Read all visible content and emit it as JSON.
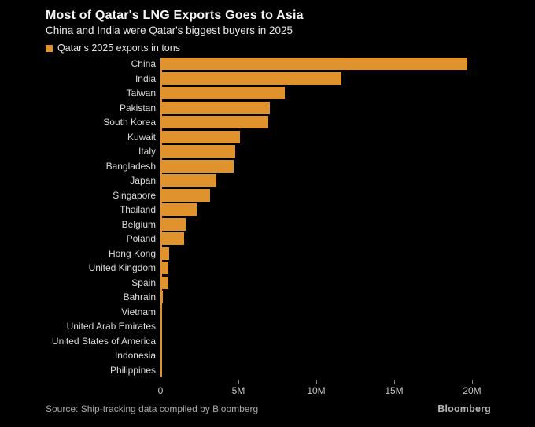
{
  "header": {
    "title": "Most of Qatar's LNG Exports Goes to Asia",
    "subtitle": "China and India were Qatar's biggest buyers in 2025"
  },
  "legend": {
    "swatch_color": "#E0922D",
    "label": "Qatar's 2025 exports in tons"
  },
  "chart_data": {
    "type": "bar",
    "orientation": "horizontal",
    "title": "Most of Qatar's LNG Exports Goes to Asia",
    "subtitle": "China and India were Qatar's biggest buyers in 2025",
    "legend": "Qatar's 2025 exports in tons",
    "legend_position": "top-left",
    "grid": false,
    "unit": "million tons",
    "xlabel": "",
    "ylabel": "",
    "xlim": [
      0,
      20
    ],
    "bar_color": "#E0922D",
    "categories": [
      "China",
      "India",
      "Taiwan",
      "Pakistan",
      "South Korea",
      "Kuwait",
      "Italy",
      "Bangladesh",
      "Japan",
      "Singapore",
      "Thailand",
      "Belgium",
      "Poland",
      "Hong Kong",
      "United Kingdom",
      "Spain",
      "Bahrain",
      "Vietnam",
      "United Arab Emirates",
      "United States of America",
      "Indonesia",
      "Philippines"
    ],
    "values": [
      19.7,
      11.6,
      8.0,
      7.0,
      6.9,
      5.1,
      4.8,
      4.7,
      3.6,
      3.2,
      2.3,
      1.6,
      1.5,
      0.55,
      0.5,
      0.5,
      0.15,
      0.12,
      0.1,
      0.08,
      0.07,
      0.06
    ],
    "x_ticks": [
      {
        "label": "0",
        "value": 0
      },
      {
        "label": "5M",
        "value": 5
      },
      {
        "label": "10M",
        "value": 10
      },
      {
        "label": "15M",
        "value": 15
      },
      {
        "label": "20M",
        "value": 20
      }
    ]
  },
  "footer": {
    "source": "Source: Ship-tracking data compiled by Bloomberg",
    "brand": "Bloomberg"
  }
}
